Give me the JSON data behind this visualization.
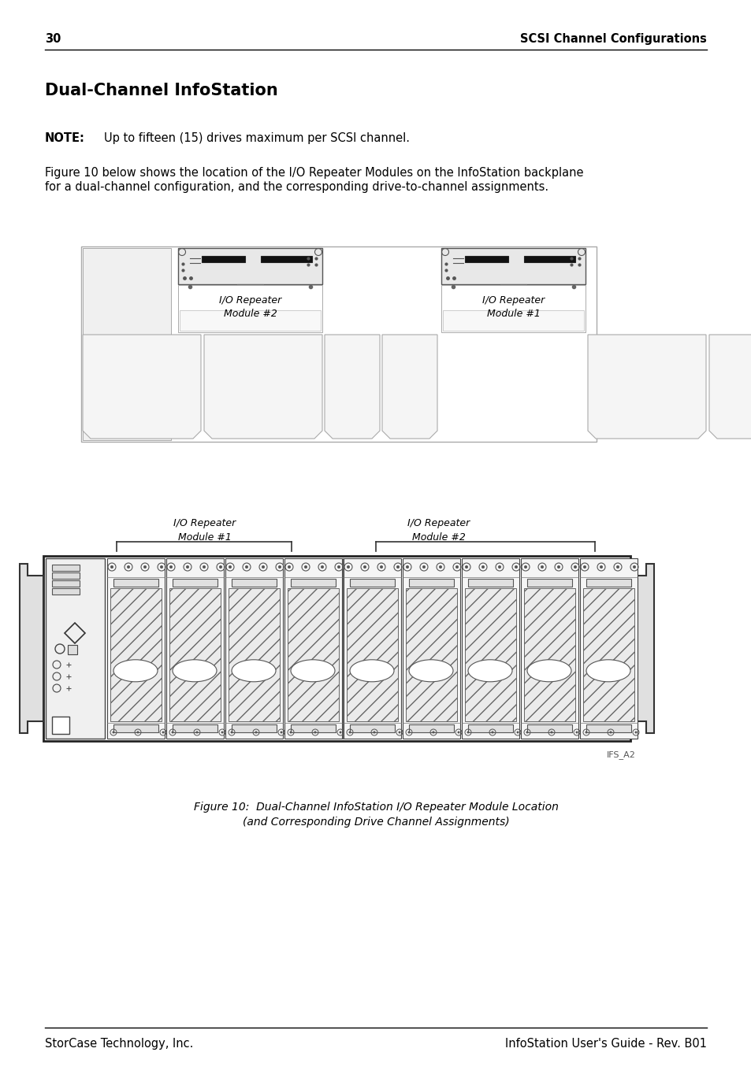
{
  "page_number": "30",
  "page_header_right": "SCSI Channel Configurations",
  "section_title": "Dual-Channel InfoStation",
  "note_label": "NOTE:",
  "note_text": "Up to fifteen (15) drives maximum per SCSI channel.",
  "body_line1": "Figure 10 below shows the location of the I/O Repeater Modules on the InfoStation backplane",
  "body_line2": "for a dual-channel configuration, and the corresponding drive-to-channel assignments.",
  "figure_caption_line1": "Figure 10:  Dual-Channel InfoStation I/O Repeater Module Location",
  "figure_caption_line2": "(and Corresponding Drive Channel Assignments)",
  "tag_label": "IFS_A2",
  "module_label_left_top": "I/O Repeater\nModule #1",
  "module_label_right_top": "I/O Repeater\nModule #2",
  "module_label_left_box": "I/O Repeater\nModule #2",
  "module_label_right_box": "I/O Repeater\nModule #1",
  "footer_left": "StorCase Technology, Inc.",
  "footer_right": "InfoStation User's Guide - Rev. B01",
  "bg_color": "#ffffff",
  "text_color": "#000000"
}
